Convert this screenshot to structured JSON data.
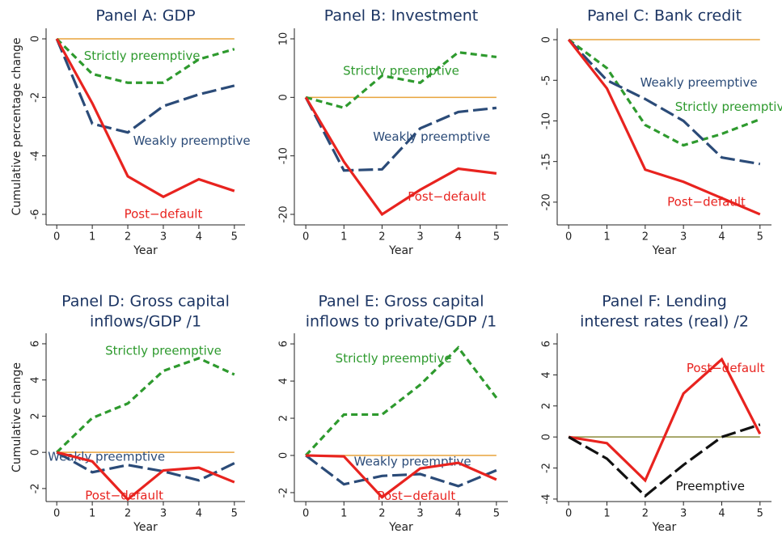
{
  "chart_data": [
    {
      "type": "line",
      "title": [
        "Panel A: GDP"
      ],
      "y_label": "Cumulative percentage change",
      "x_label": "Year",
      "x": [
        0,
        1,
        2,
        3,
        4,
        5
      ],
      "xlim": [
        -0.3,
        5.3
      ],
      "xticks": [
        0,
        1,
        2,
        3,
        4,
        5
      ],
      "ylim": [
        -6.36,
        0.36
      ],
      "yticks": [
        0,
        -2,
        -4,
        -6
      ],
      "grid": false,
      "reference_line": {
        "y": 0,
        "color": "#e8a33c"
      },
      "series": [
        {
          "name": "Strictly preemptive",
          "color": "#2e9a2e",
          "dash": "short",
          "values": [
            0,
            -1.2,
            -1.5,
            -1.5,
            -0.7,
            -0.35
          ]
        },
        {
          "name": "Weakly preemptive",
          "color": "#2b4b78",
          "dash": "long",
          "values": [
            0,
            -2.9,
            -3.2,
            -2.3,
            -1.9,
            -1.6
          ]
        },
        {
          "name": "Post−default",
          "color": "#e8231f",
          "dash": "solid",
          "values": [
            0,
            -2.2,
            -4.7,
            -5.4,
            -4.8,
            -5.2
          ]
        }
      ]
    },
    {
      "type": "line",
      "title": [
        "Panel B: Investment"
      ],
      "x_label": "Year",
      "x": [
        0,
        1,
        2,
        3,
        4,
        5
      ],
      "xlim": [
        -0.3,
        5.3
      ],
      "xticks": [
        0,
        1,
        2,
        3,
        4,
        5
      ],
      "ylim": [
        -21.8,
        11.8
      ],
      "yticks": [
        10,
        0,
        -10,
        -20
      ],
      "grid": false,
      "reference_line": {
        "y": 0,
        "color": "#e8a33c"
      },
      "series": [
        {
          "name": "Strictly preemptive",
          "color": "#2e9a2e",
          "dash": "short",
          "values": [
            0,
            -1.8,
            3.7,
            2.5,
            7.7,
            6.9
          ]
        },
        {
          "name": "Weakly preemptive",
          "color": "#2b4b78",
          "dash": "long",
          "values": [
            0,
            -12.5,
            -12.3,
            -5.3,
            -2.5,
            -1.8
          ]
        },
        {
          "name": "Post−default",
          "color": "#e8231f",
          "dash": "solid",
          "values": [
            0,
            -11,
            -20,
            -15.8,
            -12.2,
            -13
          ]
        }
      ]
    },
    {
      "type": "line",
      "title": [
        "Panel C: Bank credit"
      ],
      "x_label": "Year",
      "x": [
        0,
        1,
        2,
        3,
        4,
        5
      ],
      "xlim": [
        -0.3,
        5.3
      ],
      "xticks": [
        0,
        1,
        2,
        3,
        4,
        5
      ],
      "ylim": [
        -22.8,
        1.4
      ],
      "yticks": [
        0,
        -5,
        -10,
        -15,
        -20
      ],
      "grid": false,
      "reference_line": {
        "y": 0,
        "color": "#e8a33c"
      },
      "series": [
        {
          "name": "Strictly preemptive",
          "color": "#2e9a2e",
          "dash": "short",
          "values": [
            0,
            -3.5,
            -10.5,
            -13,
            -11.6,
            -9.8
          ]
        },
        {
          "name": "Weakly preemptive",
          "color": "#2b4b78",
          "dash": "long",
          "values": [
            0,
            -5,
            -7.3,
            -10,
            -14.5,
            -15.3
          ]
        },
        {
          "name": "Post−default",
          "color": "#e8231f",
          "dash": "solid",
          "values": [
            0,
            -6,
            -16,
            -17.5,
            -19.5,
            -21.5
          ]
        }
      ]
    },
    {
      "type": "line",
      "title": [
        "Panel D: Gross capital",
        "inflows/GDP /1"
      ],
      "y_label": "Cumulative change",
      "x_label": "Year",
      "x": [
        0,
        1,
        2,
        3,
        4,
        5
      ],
      "xlim": [
        -0.3,
        5.3
      ],
      "xticks": [
        0,
        1,
        2,
        3,
        4,
        5
      ],
      "ylim": [
        -2.72,
        6.58
      ],
      "yticks": [
        6,
        4,
        2,
        0,
        -2
      ],
      "grid": false,
      "reference_line": {
        "y": 0,
        "color": "#e8a33c"
      },
      "series": [
        {
          "name": "Strictly preemptive",
          "color": "#2e9a2e",
          "dash": "short",
          "values": [
            0,
            1.9,
            2.7,
            4.5,
            5.2,
            4.3
          ]
        },
        {
          "name": "Weakly preemptive",
          "color": "#2b4b78",
          "dash": "long",
          "values": [
            0,
            -1.1,
            -0.7,
            -1.05,
            -1.55,
            -0.6
          ]
        },
        {
          "name": "Post−default",
          "color": "#e8231f",
          "dash": "solid",
          "values": [
            0,
            -0.5,
            -2.6,
            -1.0,
            -0.85,
            -1.65
          ]
        }
      ]
    },
    {
      "type": "line",
      "title": [
        "Panel E: Gross capital",
        "inflows to private/GDP /1"
      ],
      "x_label": "Year",
      "x": [
        0,
        1,
        2,
        3,
        4,
        5
      ],
      "xlim": [
        -0.3,
        5.3
      ],
      "xticks": [
        0,
        1,
        2,
        3,
        4,
        5
      ],
      "ylim": [
        -2.48,
        6.57
      ],
      "yticks": [
        6,
        4,
        2,
        0,
        -2
      ],
      "grid": false,
      "reference_line": {
        "y": 0,
        "color": "#e8a33c"
      },
      "series": [
        {
          "name": "Strictly preemptive",
          "color": "#2e9a2e",
          "dash": "short",
          "values": [
            0,
            2.2,
            2.2,
            3.8,
            5.8,
            3.1
          ]
        },
        {
          "name": "Weakly preemptive",
          "color": "#2b4b78",
          "dash": "long",
          "values": [
            0,
            -1.55,
            -1.1,
            -1.0,
            -1.65,
            -0.8
          ]
        },
        {
          "name": "Post−default",
          "color": "#e8231f",
          "dash": "solid",
          "values": [
            0,
            -0.05,
            -2.25,
            -0.7,
            -0.4,
            -1.3
          ]
        }
      ]
    },
    {
      "type": "line",
      "title": [
        "Panel F: Lending",
        "interest rates (real) /2"
      ],
      "x_label": "Year",
      "x": [
        0,
        1,
        2,
        3,
        4,
        5
      ],
      "xlim": [
        -0.3,
        5.3
      ],
      "xticks": [
        0,
        1,
        2,
        3,
        4,
        5
      ],
      "ylim": [
        -4.16,
        6.68
      ],
      "yticks": [
        6,
        4,
        2,
        0,
        -2,
        -4
      ],
      "grid": false,
      "reference_line": {
        "y": 0,
        "color": "#8a8a3a"
      },
      "series": [
        {
          "name": "Post−default",
          "color": "#e8231f",
          "dash": "solid",
          "values": [
            0,
            -0.4,
            -2.8,
            2.8,
            5,
            0.2
          ]
        },
        {
          "name": "Preemptive",
          "color": "#111111",
          "dash": "long",
          "values": [
            0,
            -1.4,
            -3.8,
            -1.8,
            0,
            0.8
          ]
        }
      ]
    }
  ]
}
